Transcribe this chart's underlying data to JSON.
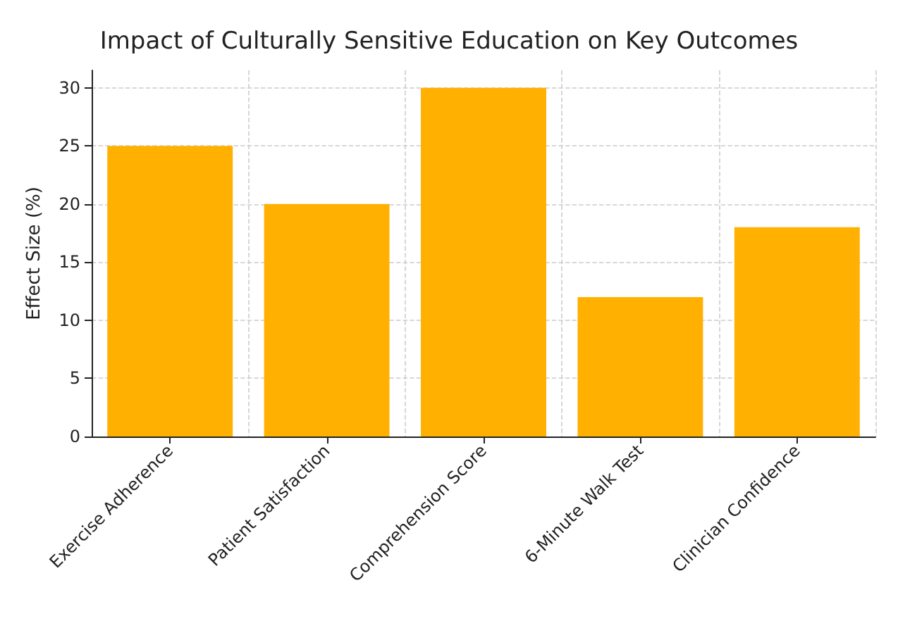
{
  "chart_data": {
    "type": "bar",
    "title": "Impact of Culturally Sensitive Education on Key Outcomes",
    "ylabel": "Effect Size (%)",
    "categories": [
      "Exercise Adherence",
      "Patient Satisfaction",
      "Comprehension Score",
      "6-Minute Walk Test",
      "Clinician Confidence"
    ],
    "values": [
      25,
      20,
      30,
      12,
      18
    ],
    "color": "#ffb000",
    "ylim": [
      0,
      31.5
    ],
    "yticks": [
      0,
      5,
      10,
      15,
      20,
      25,
      30
    ],
    "grid": true
  }
}
